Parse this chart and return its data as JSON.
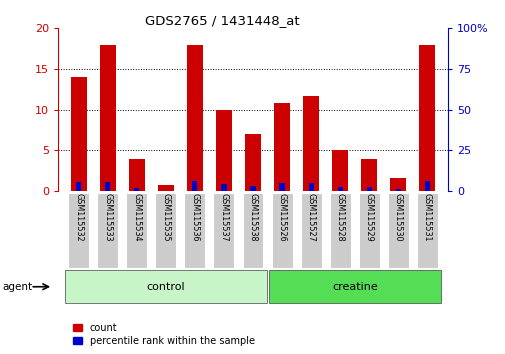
{
  "title": "GDS2765 / 1431448_at",
  "categories": [
    "GSM115532",
    "GSM115533",
    "GSM115534",
    "GSM115535",
    "GSM115536",
    "GSM115537",
    "GSM115538",
    "GSM115526",
    "GSM115527",
    "GSM115528",
    "GSM115529",
    "GSM115530",
    "GSM115531"
  ],
  "count_values": [
    14.0,
    18.0,
    4.0,
    0.8,
    18.0,
    10.0,
    7.0,
    10.8,
    11.7,
    5.0,
    4.0,
    1.6,
    18.0
  ],
  "percentile_values": [
    5.4,
    5.9,
    2.0,
    0.2,
    6.0,
    4.2,
    3.3,
    5.0,
    5.0,
    2.8,
    2.4,
    1.1,
    6.0
  ],
  "groups": [
    {
      "label": "control",
      "start": 0,
      "end": 7,
      "color": "#c8f5c8"
    },
    {
      "label": "creatine",
      "start": 7,
      "end": 13,
      "color": "#55dd55"
    }
  ],
  "agent_label": "agent",
  "left_ylim": [
    0,
    20
  ],
  "right_ylim": [
    0,
    100
  ],
  "left_yticks": [
    0,
    5,
    10,
    15,
    20
  ],
  "right_yticks": [
    0,
    25,
    50,
    75,
    100
  ],
  "right_yticklabels": [
    "0",
    "25",
    "50",
    "75",
    "100%"
  ],
  "left_ytick_color": "#cc0000",
  "right_ytick_color": "#0000cc",
  "count_color": "#cc0000",
  "percentile_color": "#0000cc",
  "bar_width": 0.55,
  "blue_bar_width": 0.18,
  "grid_yticks": [
    5,
    10,
    15
  ],
  "grid_color": "#000000",
  "background_color": "#ffffff",
  "plot_bg_color": "#ffffff",
  "tick_bg_color": "#cccccc",
  "legend_count": "count",
  "legend_percentile": "percentile rank within the sample"
}
